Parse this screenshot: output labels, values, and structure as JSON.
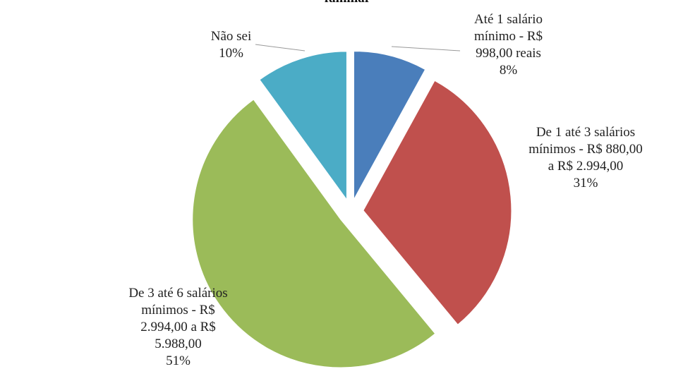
{
  "chart_data": {
    "type": "pie",
    "title": "familiar",
    "categories": [
      "Até 1 salário mínimo - R$ 998,00 reais",
      "De 1 até 3 salários mínimos - R$ 880,00 a R$ 2.994,00",
      "De 3 até 6 salários mínimos - R$ 2.994,00 a R$ 5.988,00",
      "Não sei"
    ],
    "values": [
      8,
      31,
      51,
      10
    ],
    "value_labels": [
      "8%",
      "31%",
      "51%",
      "10%"
    ],
    "colors": [
      "#4a7ebb",
      "#c0504d",
      "#9bbb59",
      "#4bacc6"
    ]
  }
}
